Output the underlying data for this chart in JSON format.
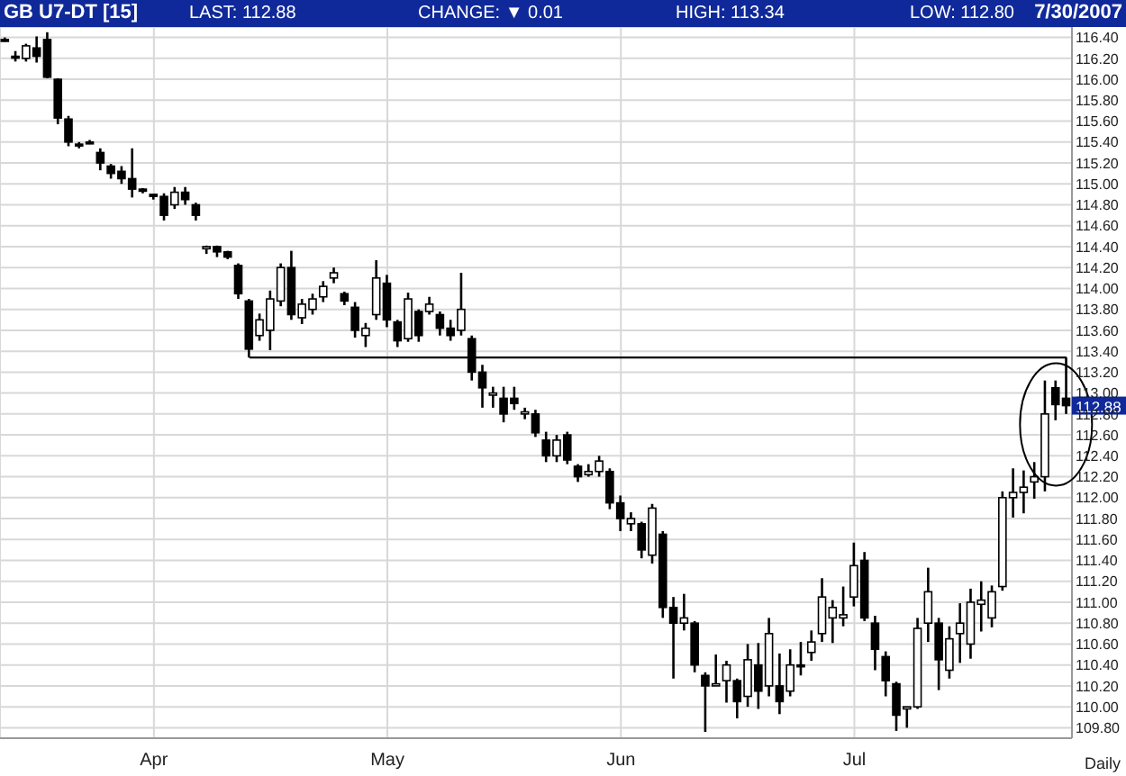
{
  "chart_data": {
    "type": "candlestick",
    "title": "GB U7-DT [15]",
    "color": "#000000",
    "grid": true,
    "annotations": [
      "LAST: 112.88",
      "CHANGE: ▼ 0.01",
      "HIGH: 113.34",
      "LOW: 112.80",
      "7/30/2007",
      {
        "text": "112.88",
        "y": 112.88
      },
      "Daily"
    ],
    "categories": [
      null,
      null,
      null,
      null,
      null,
      null,
      null,
      null,
      null,
      null,
      null,
      null,
      null,
      null,
      "Apr",
      null,
      null,
      null,
      null,
      null,
      null,
      null,
      null,
      null,
      null,
      null,
      null,
      null,
      null,
      null,
      null,
      null,
      null,
      null,
      null,
      null,
      "May",
      null,
      null,
      null,
      null,
      null,
      null,
      null,
      null,
      null,
      null,
      null,
      null,
      null,
      null,
      null,
      null,
      null,
      null,
      null,
      null,
      null,
      "Jun",
      null,
      null,
      null,
      null,
      null,
      null,
      null,
      null,
      null,
      null,
      null,
      null,
      null,
      null,
      null,
      null,
      null,
      null,
      null,
      null,
      null,
      "Jul",
      null,
      null,
      null,
      null,
      null,
      null,
      null,
      null,
      null,
      null,
      null,
      null,
      null,
      null,
      null,
      null,
      null,
      null,
      null,
      null
    ],
    "ohlc": [
      [
        116.38,
        116.4,
        116.36,
        116.38
      ],
      [
        116.22,
        116.27,
        116.17,
        116.22
      ],
      [
        116.2,
        116.34,
        116.17,
        116.32
      ],
      [
        116.3,
        116.41,
        116.16,
        116.22
      ],
      [
        116.38,
        116.45,
        116.01,
        116.02
      ],
      [
        116.0,
        116.01,
        115.57,
        115.63
      ],
      [
        115.62,
        115.65,
        115.36,
        115.4
      ],
      [
        115.38,
        115.4,
        115.34,
        115.38
      ],
      [
        115.4,
        115.42,
        115.38,
        115.4
      ],
      [
        115.3,
        115.34,
        115.13,
        115.2
      ],
      [
        115.17,
        115.19,
        115.05,
        115.1
      ],
      [
        115.12,
        115.17,
        115.0,
        115.05
      ],
      [
        115.05,
        115.34,
        114.87,
        114.95
      ],
      [
        114.95,
        114.96,
        114.91,
        114.93
      ],
      [
        114.9,
        114.9,
        114.85,
        114.88
      ],
      [
        114.88,
        114.91,
        114.65,
        114.7
      ],
      [
        114.8,
        114.97,
        114.76,
        114.92
      ],
      [
        114.92,
        114.97,
        114.8,
        114.85
      ],
      [
        114.8,
        114.82,
        114.65,
        114.7
      ],
      [
        114.38,
        114.41,
        114.33,
        114.4
      ],
      [
        114.4,
        114.41,
        114.3,
        114.35
      ],
      [
        114.35,
        114.36,
        114.28,
        114.3
      ],
      [
        114.22,
        114.24,
        113.9,
        113.95
      ],
      [
        113.88,
        113.9,
        113.34,
        113.42
      ],
      [
        113.55,
        113.76,
        113.5,
        113.7
      ],
      [
        113.6,
        113.98,
        113.41,
        113.9
      ],
      [
        113.88,
        114.24,
        113.83,
        114.2
      ],
      [
        114.2,
        114.36,
        113.7,
        113.75
      ],
      [
        113.72,
        113.9,
        113.66,
        113.85
      ],
      [
        113.8,
        113.95,
        113.75,
        113.9
      ],
      [
        113.92,
        114.07,
        113.87,
        114.02
      ],
      [
        114.1,
        114.2,
        114.05,
        114.15
      ],
      [
        113.95,
        113.97,
        113.84,
        113.88
      ],
      [
        113.82,
        113.87,
        113.53,
        113.6
      ],
      [
        113.55,
        113.67,
        113.44,
        113.62
      ],
      [
        113.75,
        114.27,
        113.7,
        114.1
      ],
      [
        114.05,
        114.13,
        113.63,
        113.7
      ],
      [
        113.68,
        113.7,
        113.44,
        113.5
      ],
      [
        113.52,
        113.96,
        113.49,
        113.9
      ],
      [
        113.78,
        113.8,
        113.49,
        113.55
      ],
      [
        113.78,
        113.92,
        113.75,
        113.85
      ],
      [
        113.75,
        113.78,
        113.55,
        113.62
      ],
      [
        113.62,
        113.7,
        113.5,
        113.55
      ],
      [
        113.6,
        114.15,
        113.55,
        113.8
      ],
      [
        113.52,
        113.55,
        113.12,
        113.2
      ],
      [
        113.2,
        113.27,
        112.86,
        113.05
      ],
      [
        112.98,
        113.06,
        112.86,
        113.0
      ],
      [
        112.95,
        113.06,
        112.72,
        112.8
      ],
      [
        112.95,
        113.06,
        112.84,
        112.9
      ],
      [
        112.8,
        112.86,
        112.75,
        112.82
      ],
      [
        112.8,
        112.84,
        112.58,
        112.62
      ],
      [
        112.55,
        112.63,
        112.34,
        112.4
      ],
      [
        112.4,
        112.6,
        112.34,
        112.55
      ],
      [
        112.6,
        112.63,
        112.32,
        112.36
      ],
      [
        112.3,
        112.32,
        112.15,
        112.2
      ],
      [
        112.22,
        112.32,
        112.2,
        112.25
      ],
      [
        112.25,
        112.4,
        112.2,
        112.35
      ],
      [
        112.25,
        112.28,
        111.89,
        111.95
      ],
      [
        111.95,
        112.02,
        111.68,
        111.8
      ],
      [
        111.75,
        111.86,
        111.68,
        111.8
      ],
      [
        111.75,
        111.77,
        111.42,
        111.5
      ],
      [
        111.45,
        111.94,
        111.37,
        111.9
      ],
      [
        111.65,
        111.68,
        110.85,
        110.95
      ],
      [
        110.95,
        111.05,
        110.27,
        110.8
      ],
      [
        110.8,
        111.08,
        110.73,
        110.85
      ],
      [
        110.8,
        110.82,
        110.33,
        110.4
      ],
      [
        110.3,
        110.33,
        109.76,
        110.2
      ],
      [
        110.2,
        110.5,
        110.2,
        110.22
      ],
      [
        110.25,
        110.44,
        110.04,
        110.4
      ],
      [
        110.25,
        110.27,
        109.89,
        110.05
      ],
      [
        110.1,
        110.6,
        110.0,
        110.45
      ],
      [
        110.4,
        110.61,
        109.98,
        110.15
      ],
      [
        110.2,
        110.85,
        110.1,
        110.7
      ],
      [
        110.2,
        110.51,
        109.93,
        110.05
      ],
      [
        110.15,
        110.55,
        110.1,
        110.4
      ],
      [
        110.4,
        110.62,
        110.3,
        110.4
      ],
      [
        110.52,
        110.73,
        110.44,
        110.62
      ],
      [
        110.7,
        111.23,
        110.62,
        111.05
      ],
      [
        110.85,
        111.02,
        110.61,
        110.95
      ],
      [
        110.85,
        111.15,
        110.77,
        110.88
      ],
      [
        111.05,
        111.57,
        110.96,
        111.35
      ],
      [
        111.4,
        111.48,
        110.82,
        110.85
      ],
      [
        110.8,
        110.87,
        110.35,
        110.55
      ],
      [
        110.48,
        110.53,
        110.1,
        110.25
      ],
      [
        110.22,
        110.24,
        109.77,
        109.92
      ],
      [
        109.98,
        110.0,
        109.8,
        110.0
      ],
      [
        110.0,
        110.85,
        109.98,
        110.75
      ],
      [
        110.8,
        111.33,
        110.62,
        111.1
      ],
      [
        110.8,
        110.85,
        110.16,
        110.45
      ],
      [
        110.35,
        110.77,
        110.27,
        110.65
      ],
      [
        110.7,
        110.99,
        110.42,
        110.8
      ],
      [
        110.6,
        111.13,
        110.46,
        111.0
      ],
      [
        110.98,
        111.2,
        110.72,
        111.02
      ],
      [
        110.85,
        111.16,
        110.76,
        111.1
      ],
      [
        111.15,
        112.06,
        111.11,
        112.0
      ],
      [
        112.0,
        112.28,
        111.81,
        112.05
      ],
      [
        112.05,
        112.26,
        111.85,
        112.1
      ],
      [
        112.15,
        112.34,
        111.99,
        112.2
      ],
      [
        112.2,
        113.12,
        112.06,
        112.8
      ],
      [
        113.05,
        113.12,
        112.74,
        112.89
      ],
      [
        112.95,
        113.34,
        112.8,
        112.88
      ]
    ],
    "series": [
      {
        "type": "line",
        "color": "#000000",
        "values": [
          null,
          null,
          null,
          null,
          null,
          null,
          null,
          null,
          null,
          null,
          null,
          null,
          null,
          null,
          null,
          null,
          null,
          null,
          null,
          null,
          null,
          null,
          null,
          113.34,
          null,
          null,
          null,
          null,
          null,
          null,
          null,
          null,
          null,
          null,
          null,
          null,
          null,
          null,
          null,
          null,
          null,
          null,
          null,
          null,
          null,
          null,
          null,
          null,
          null,
          null,
          null,
          null,
          null,
          null,
          null,
          null,
          null,
          null,
          null,
          null,
          null,
          null,
          null,
          null,
          null,
          null,
          null,
          null,
          null,
          null,
          null,
          null,
          null,
          null,
          null,
          null,
          null,
          null,
          null,
          null,
          null,
          null,
          null,
          null,
          null,
          null,
          null,
          null,
          null,
          null,
          null,
          null,
          null,
          null,
          null,
          null,
          null,
          null,
          null,
          null,
          113.34
        ]
      }
    ],
    "ylim": [
      109.7,
      116.5
    ],
    "yticks": [
      {
        "value": 109.8,
        "label": "109.80"
      },
      {
        "value": 110,
        "label": "110.00"
      },
      {
        "value": 110.2,
        "label": "110.20"
      },
      {
        "value": 110.4,
        "label": "110.40"
      },
      {
        "value": 110.6,
        "label": "110.60"
      },
      {
        "value": 110.8,
        "label": "110.80"
      },
      {
        "value": 111,
        "label": "111.00"
      },
      {
        "value": 111.2,
        "label": "111.20"
      },
      {
        "value": 111.4,
        "label": "111.40"
      },
      {
        "value": 111.6,
        "label": "111.60"
      },
      {
        "value": 111.8,
        "label": "111.80"
      },
      {
        "value": 112,
        "label": "112.00"
      },
      {
        "value": 112.2,
        "label": "112.20"
      },
      {
        "value": 112.4,
        "label": "112.40"
      },
      {
        "value": 112.6,
        "label": "112.60"
      },
      {
        "value": 112.8,
        "label": "112.80"
      },
      {
        "value": 113,
        "label": "113.00"
      },
      {
        "value": 113.2,
        "label": "113.20"
      },
      {
        "value": 113.4,
        "label": "113.40"
      },
      {
        "value": 113.6,
        "label": "113.60"
      },
      {
        "value": 113.8,
        "label": "113.80"
      },
      {
        "value": 114,
        "label": "114.00"
      },
      {
        "value": 114.2,
        "label": "114.20"
      },
      {
        "value": 114.4,
        "label": "114.40"
      },
      {
        "value": 114.6,
        "label": "114.60"
      },
      {
        "value": 114.8,
        "label": "114.80"
      },
      {
        "value": 115,
        "label": "115.00"
      },
      {
        "value": 115.2,
        "label": "115.20"
      },
      {
        "value": 115.4,
        "label": "115.40"
      },
      {
        "value": 115.6,
        "label": "115.60"
      },
      {
        "value": 115.8,
        "label": "115.80"
      },
      {
        "value": 116,
        "label": "116.00"
      },
      {
        "value": 116.2,
        "label": "116.20"
      },
      {
        "value": 116.4,
        "label": "116.40"
      }
    ]
  }
}
